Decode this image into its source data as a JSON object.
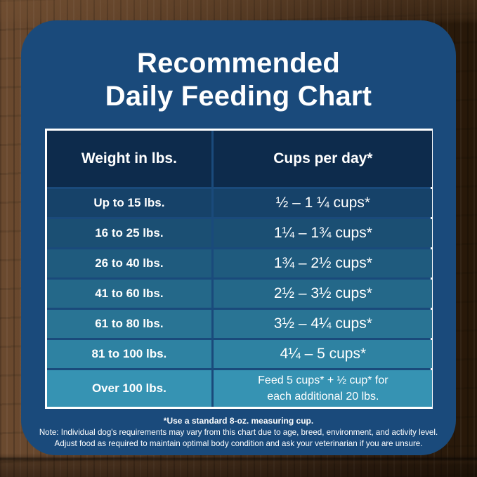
{
  "title": {
    "line1": "Recommended",
    "line2": "Daily Feeding Chart"
  },
  "colors": {
    "panel_bg": "#1a4a7b",
    "table_border": "#ffffff",
    "header_bg": "#0d2b4c",
    "text": "#ffffff"
  },
  "table": {
    "headers": {
      "weight": "Weight in lbs.",
      "cups": "Cups per day*"
    },
    "rows": [
      {
        "weight": "Up to 15 lbs.",
        "cups": "½ – 1 ¼ cups*",
        "color": "#164269"
      },
      {
        "weight": "16 to 25 lbs.",
        "cups": "1¼ – 1¾  cups*",
        "color": "#1b4f73"
      },
      {
        "weight": "26 to 40 lbs.",
        "cups": "1¾ – 2½ cups*",
        "color": "#1f5b7e"
      },
      {
        "weight": "41 to 60 lbs.",
        "cups": "2½ – 3½ cups*",
        "color": "#246889"
      },
      {
        "weight": "61 to 80 lbs.",
        "cups": "3½ – 4¼ cups*",
        "color": "#297494"
      },
      {
        "weight": "81 to 100 lbs.",
        "cups": "4¼ – 5 cups*",
        "color": "#2e82a2"
      },
      {
        "weight": "Over 100 lbs.",
        "cups": "Feed 5 cups* + ½ cup* for\neach additional 20 lbs.",
        "color": "#3693b3"
      }
    ]
  },
  "footer": {
    "line1": "*Use a standard 8-oz. measuring cup.",
    "line2": "Note: Individual dog's requirements may vary from this chart due to age, breed, environment, and activity level.",
    "line3": "Adjust food as required to maintain optimal body condition and ask your veterinarian if you are unsure."
  },
  "chart_data": {
    "type": "table",
    "title": "Recommended Daily Feeding Chart",
    "columns": [
      "Weight in lbs.",
      "Cups per day*"
    ],
    "rows": [
      [
        "Up to 15 lbs.",
        "½ – 1 ¼ cups*"
      ],
      [
        "16 to 25 lbs.",
        "1¼ – 1¾ cups*"
      ],
      [
        "26 to 40 lbs.",
        "1¾ – 2½ cups*"
      ],
      [
        "41 to 60 lbs.",
        "2½ – 3½ cups*"
      ],
      [
        "61 to 80 lbs.",
        "3½ – 4¼ cups*"
      ],
      [
        "81 to 100 lbs.",
        "4¼ – 5 cups*"
      ],
      [
        "Over 100 lbs.",
        "Feed 5 cups* + ½ cup* for each additional 20 lbs."
      ]
    ],
    "notes": [
      "*Use a standard 8-oz. measuring cup.",
      "Note: Individual dog's requirements may vary from this chart due to age, breed, environment, and activity level.",
      "Adjust food as required to maintain optimal body condition and ask your veterinarian if you are unsure."
    ],
    "row_gradient": [
      "#164269",
      "#1b4f73",
      "#1f5b7e",
      "#246889",
      "#297494",
      "#2e82a2",
      "#3693b3"
    ]
  }
}
